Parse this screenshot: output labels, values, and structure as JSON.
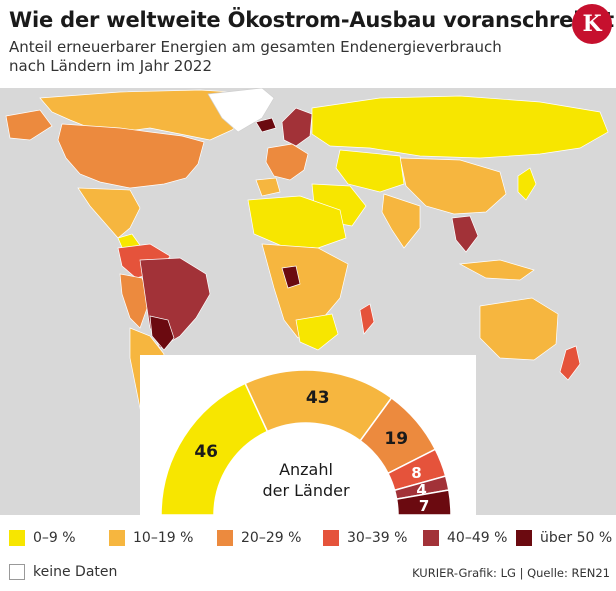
{
  "header": {
    "title": "Wie der weltweite Ökostrom-Ausbau voranschreitet",
    "subtitle": "Anteil erneuerbarer Energien am gesamten Endenergieverbrauch nach Ländern im Jahr 2022",
    "logo_letter": "K"
  },
  "colors": {
    "c0_9": "#f7e600",
    "c10_19": "#f6b63f",
    "c20_29": "#ec8a3e",
    "c30_39": "#e5533b",
    "c40_49": "#a23238",
    "c50": "#6b0a10",
    "no_data": "#ffffff",
    "ocean": "#d8d8d8"
  },
  "chart_data": {
    "type": "pie",
    "title": "Anzahl der Länder",
    "categories": [
      "0–9 %",
      "10–19 %",
      "20–29 %",
      "30–39 %",
      "40–49 %",
      "über 50 %"
    ],
    "values": [
      46,
      43,
      19,
      8,
      4,
      7
    ],
    "colors": [
      "#f7e600",
      "#f6b63f",
      "#ec8a3e",
      "#e5533b",
      "#a23238",
      "#6b0a10"
    ],
    "center_label_line1": "Anzahl",
    "center_label_line2": "der Länder"
  },
  "legend": {
    "items": [
      {
        "label": "0–9 %",
        "color": "#f7e600"
      },
      {
        "label": "10–19 %",
        "color": "#f6b63f"
      },
      {
        "label": "20–29 %",
        "color": "#ec8a3e"
      },
      {
        "label": "30–39 %",
        "color": "#e5533b"
      },
      {
        "label": "40–49 %",
        "color": "#a23238"
      },
      {
        "label": "über 50 %",
        "color": "#6b0a10"
      },
      {
        "label": "keine Daten",
        "color": "#ffffff"
      }
    ]
  },
  "footer": {
    "credit": "KURIER-Grafik: LG | Quelle: REN21"
  }
}
